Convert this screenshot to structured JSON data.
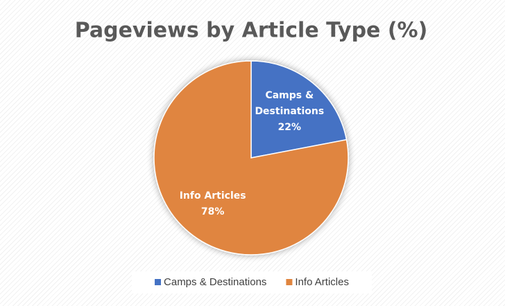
{
  "chart_data": {
    "type": "pie",
    "title": "Pageviews by Article Type (%)",
    "categories": [
      "Camps & Destinations",
      "Info Articles"
    ],
    "values": [
      22,
      78
    ],
    "value_labels": [
      "22%",
      "78%"
    ],
    "colors": [
      "#4472c4",
      "#e0853f"
    ],
    "legend": "bottom"
  }
}
